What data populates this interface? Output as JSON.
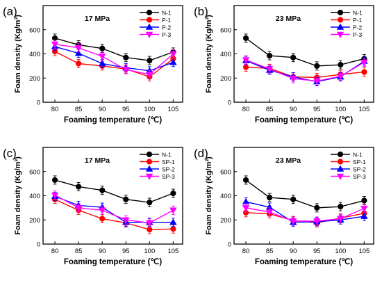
{
  "chart_data": [
    {
      "type": "line",
      "panel_label": "(a)",
      "title": "17 MPa",
      "xlabel": "Foaming temperature (℃)",
      "ylabel": "Foam density (Kg/m³)",
      "x": [
        80,
        85,
        90,
        95,
        100,
        105
      ],
      "xlim": [
        77.5,
        107
      ],
      "ylim": [
        0,
        800
      ],
      "yticks": [
        0,
        200,
        400,
        600,
        800
      ],
      "legend_position": "top-right",
      "grid": false,
      "series": [
        {
          "name": "N-1",
          "color": "#000000",
          "marker": "circle",
          "values": [
            530,
            475,
            445,
            370,
            345,
            415
          ]
        },
        {
          "name": "P-1",
          "color": "#ff0000",
          "marker": "circle",
          "values": [
            420,
            320,
            300,
            275,
            210,
            360
          ]
        },
        {
          "name": "P-2",
          "color": "#0000ff",
          "marker": "triangle-up",
          "values": [
            460,
            405,
            320,
            285,
            260,
            330
          ]
        },
        {
          "name": "P-3",
          "color": "#ff00ff",
          "marker": "triangle-down",
          "values": [
            480,
            450,
            380,
            270,
            230,
            400
          ]
        }
      ]
    },
    {
      "type": "line",
      "panel_label": "(b)",
      "title": "23 MPa",
      "xlabel": "Foaming temperature (℃)",
      "ylabel": "Foam density (Kg/m³)",
      "x": [
        80,
        85,
        90,
        95,
        100,
        105
      ],
      "xlim": [
        77.5,
        107
      ],
      "ylim": [
        0,
        800
      ],
      "yticks": [
        0,
        200,
        400,
        600,
        800
      ],
      "legend_position": "top-right",
      "grid": false,
      "series": [
        {
          "name": "N-1",
          "color": "#000000",
          "marker": "circle",
          "values": [
            530,
            385,
            370,
            300,
            310,
            360
          ]
        },
        {
          "name": "P-1",
          "color": "#ff0000",
          "marker": "circle",
          "values": [
            290,
            280,
            210,
            205,
            230,
            250
          ]
        },
        {
          "name": "P-2",
          "color": "#0000ff",
          "marker": "triangle-up",
          "values": [
            345,
            265,
            210,
            170,
            210,
            340
          ]
        },
        {
          "name": "P-3",
          "color": "#ff00ff",
          "marker": "triangle-down",
          "values": [
            350,
            275,
            195,
            175,
            215,
            330
          ]
        }
      ]
    },
    {
      "type": "line",
      "panel_label": "(c)",
      "title": "17 MPa",
      "xlabel": "Foaming temperature (℃)",
      "ylabel": "Foam density (Kg/m³)",
      "x": [
        80,
        85,
        90,
        95,
        100,
        105
      ],
      "xlim": [
        77.5,
        107
      ],
      "ylim": [
        0,
        800
      ],
      "yticks": [
        0,
        200,
        400,
        600,
        800
      ],
      "legend_position": "top-right",
      "grid": false,
      "series": [
        {
          "name": "N-1",
          "color": "#000000",
          "marker": "circle",
          "values": [
            530,
            475,
            445,
            370,
            345,
            420
          ]
        },
        {
          "name": "SP-1",
          "color": "#ff0000",
          "marker": "circle",
          "values": [
            370,
            280,
            210,
            175,
            120,
            125
          ]
        },
        {
          "name": "SP-2",
          "color": "#0000ff",
          "marker": "triangle-up",
          "values": [
            395,
            320,
            305,
            180,
            180,
            180
          ]
        },
        {
          "name": "SP-3",
          "color": "#ff00ff",
          "marker": "triangle-down",
          "values": [
            405,
            300,
            280,
            200,
            175,
            280
          ]
        }
      ]
    },
    {
      "type": "line",
      "panel_label": "(d)",
      "title": "23 MPa",
      "xlabel": "Foaming temperature (℃)",
      "ylabel": "Foam density (Kg/m³)",
      "x": [
        80,
        85,
        90,
        95,
        100,
        105
      ],
      "xlim": [
        77.5,
        107
      ],
      "ylim": [
        0,
        800
      ],
      "yticks": [
        0,
        200,
        400,
        600,
        800
      ],
      "legend_position": "top-right",
      "grid": false,
      "series": [
        {
          "name": "N-1",
          "color": "#000000",
          "marker": "circle",
          "values": [
            530,
            385,
            370,
            300,
            310,
            360
          ]
        },
        {
          "name": "SP-1",
          "color": "#ff0000",
          "marker": "circle",
          "values": [
            260,
            250,
            195,
            175,
            215,
            255
          ]
        },
        {
          "name": "SP-2",
          "color": "#0000ff",
          "marker": "triangle-up",
          "values": [
            350,
            305,
            180,
            185,
            200,
            230
          ]
        },
        {
          "name": "SP-3",
          "color": "#ff00ff",
          "marker": "triangle-down",
          "values": [
            300,
            265,
            190,
            190,
            210,
            295
          ]
        }
      ]
    }
  ]
}
